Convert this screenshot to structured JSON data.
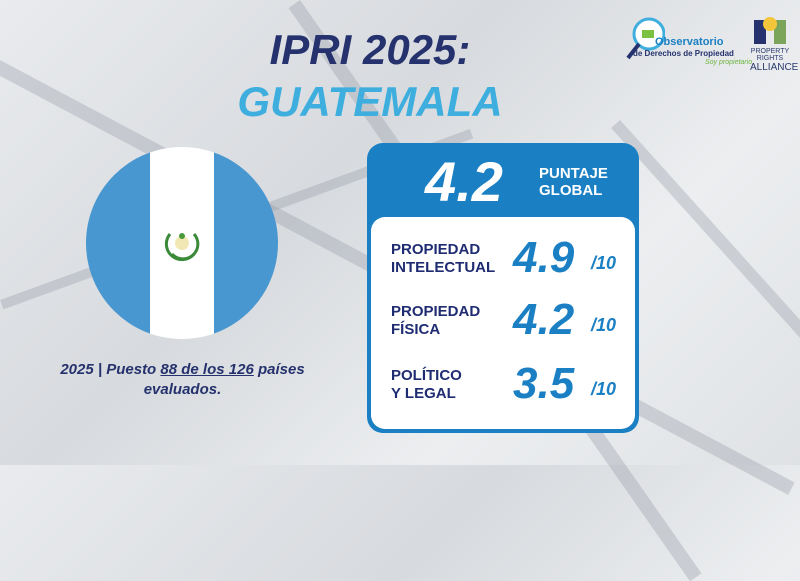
{
  "title": {
    "line1": "IPRI 2025:",
    "line2": "GUATEMALA"
  },
  "logos": {
    "observatorio": [
      "Observatorio",
      "de Derechos de Propiedad",
      "Soy propietario"
    ],
    "alliance": [
      "PROPERTY RIGHTS",
      "ALLIANCE"
    ]
  },
  "caption": {
    "prefix": "2025 | Puesto ",
    "rank": "88 de los 126",
    "suffix": " países evaluados."
  },
  "score": {
    "global": "4.2",
    "global_label_1": "PUNTAJE",
    "global_label_2": "GLOBAL",
    "rows": [
      {
        "label1": "PROPIEDAD",
        "label2": "INTELECTUAL",
        "value": "4.9",
        "denom": "/10"
      },
      {
        "label1": "PROPIEDAD",
        "label2": "FÍSICA",
        "value": "4.2",
        "denom": "/10"
      },
      {
        "label1": "POLÍTICO",
        "label2": "Y LEGAL",
        "value": "3.5",
        "denom": "/10"
      }
    ]
  },
  "colors": {
    "navy": "#25326d",
    "accent": "#1b80c3",
    "light": "#3eaede",
    "flag_blue": "#4997d0"
  }
}
